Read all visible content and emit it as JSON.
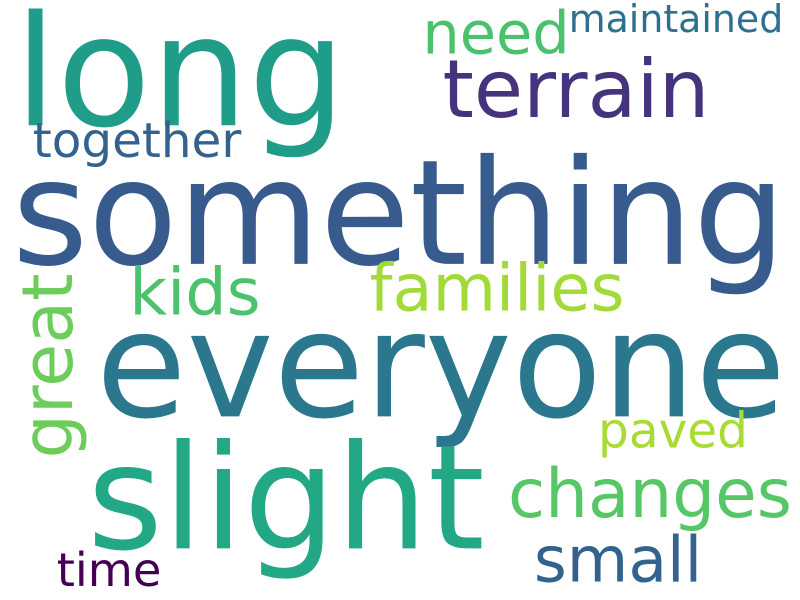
{
  "words": [
    {
      "text": "long",
      "color": "#1f9d89"
    },
    {
      "text": "terrain",
      "color": "#46337e"
    },
    {
      "text": "need",
      "color": "#4ac16d"
    },
    {
      "text": "maintained",
      "color": "#2d718e"
    },
    {
      "text": "together",
      "color": "#33628d"
    },
    {
      "text": "something",
      "color": "#375b8d"
    },
    {
      "text": "kids",
      "color": "#4cc26c"
    },
    {
      "text": "families",
      "color": "#a2da37"
    },
    {
      "text": "great",
      "color": "#6ccd5a"
    },
    {
      "text": "everyone",
      "color": "#2a778e"
    },
    {
      "text": "paved",
      "color": "#a8db34"
    },
    {
      "text": "slight",
      "color": "#22a884"
    },
    {
      "text": "changes",
      "color": "#56c667"
    },
    {
      "text": "small",
      "color": "#33628d"
    },
    {
      "text": "time",
      "color": "#440154"
    }
  ]
}
